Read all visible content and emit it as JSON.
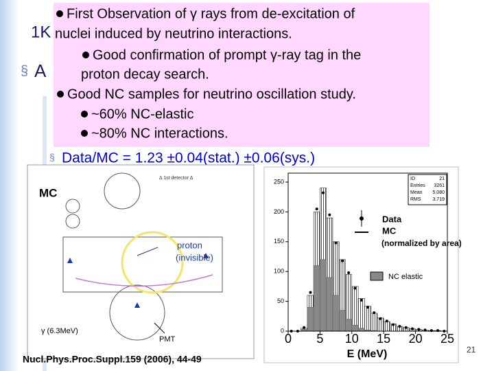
{
  "slide": {
    "title_fragment": "1K",
    "bullet_fragment": "A",
    "callout": [
      "First Observation of γ rays from de-excitation of",
      "nuclei induced by neutrino interactions.",
      "Good confirmation of prompt γ-ray tag in the",
      "proton decay search.",
      "Good NC samples for neutrino oscillation study.",
      "~60% NC-elastic",
      "~80% NC interactions."
    ],
    "result": "Data/MC = 1.23 ±0.04(stat.) ±0.06(sys.)",
    "event_display": {
      "label": "MC",
      "panel": "Δ 1st detector Δ",
      "proton": "proton",
      "proton_note": "(invisible)",
      "gamma": "γ (6.3MeV)",
      "pmt": "PMT"
    },
    "citation": "Nucl.Phys.Proc.Suppl.159 (2006), 44-49",
    "page_number": "21"
  },
  "chart_data": {
    "type": "histogram",
    "xlabel": "E (MeV)",
    "bins": [
      0,
      1,
      2,
      3,
      4,
      5,
      6,
      7,
      8,
      9,
      10,
      11,
      12,
      13,
      14,
      15,
      16,
      17,
      18,
      19,
      20,
      21,
      22,
      23,
      24,
      25
    ],
    "series": [
      {
        "name": "Data",
        "color": "#000000",
        "values": [
          0,
          0,
          6,
          65,
          205,
          232,
          195,
          148,
          118,
          98,
          72,
          52,
          40,
          31,
          21,
          17,
          11,
          8,
          6,
          4,
          3,
          2,
          1,
          1,
          0
        ]
      },
      {
        "name": "MC",
        "color": "#000000",
        "values": [
          0,
          0,
          5,
          60,
          200,
          240,
          190,
          150,
          120,
          95,
          75,
          55,
          42,
          30,
          22,
          16,
          12,
          8,
          6,
          4,
          3,
          2,
          1,
          1,
          0
        ]
      },
      {
        "name": "NC elastic",
        "color": "#888888",
        "values": [
          0,
          0,
          3,
          40,
          110,
          120,
          90,
          60,
          35,
          20,
          10,
          5,
          2,
          1,
          0,
          0,
          0,
          0,
          0,
          0,
          0,
          0,
          0,
          0,
          0
        ]
      }
    ],
    "legend_note": "(normalized by area)",
    "stats": [
      [
        "ID",
        "21"
      ],
      [
        "Entries",
        "3261"
      ],
      [
        "Mean",
        "5.080"
      ],
      [
        "RMS",
        "3.719"
      ]
    ],
    "xlim": [
      0,
      25
    ],
    "ylim": [
      0,
      265
    ],
    "xticks": [
      0,
      5,
      10,
      15,
      20,
      25
    ],
    "yticks": [
      0,
      50,
      100,
      150,
      200,
      250
    ]
  }
}
